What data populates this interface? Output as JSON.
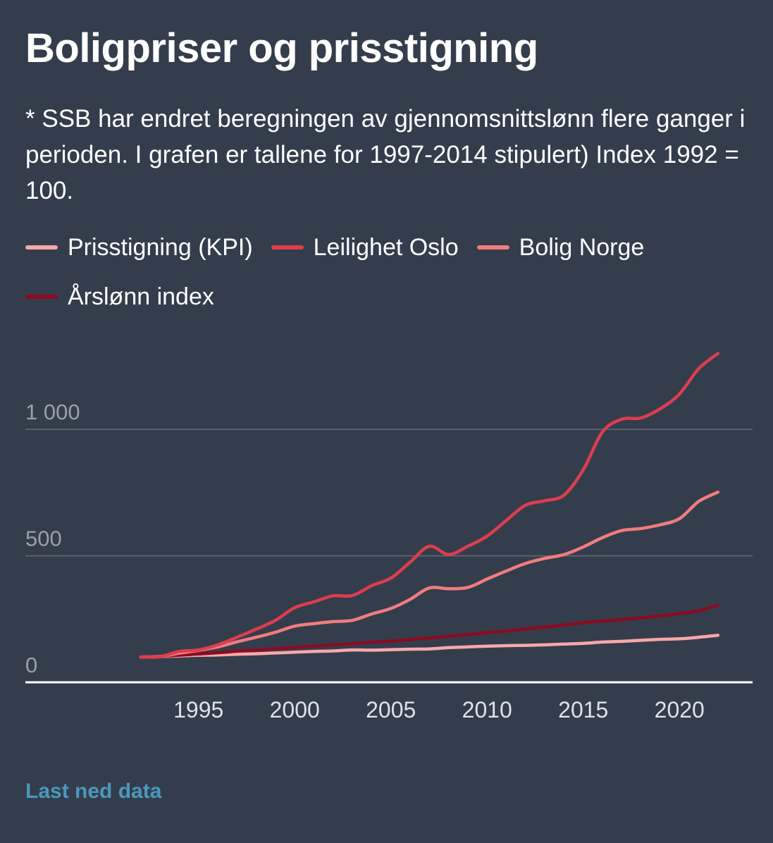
{
  "title": "Boligpriser og prisstigning",
  "subtitle": "* SSB har endret beregningen av gjennomsnittslønn flere ganger i perioden. I grafen er tallene for 1997-2014 stipulert) Index 1992 = 100.",
  "download_label": "Last ned data",
  "chart_data": {
    "type": "line",
    "x": [
      1992,
      1993,
      1994,
      1995,
      1996,
      1997,
      1998,
      1999,
      2000,
      2001,
      2002,
      2003,
      2004,
      2005,
      2006,
      2007,
      2008,
      2009,
      2010,
      2011,
      2012,
      2013,
      2014,
      2015,
      2016,
      2017,
      2018,
      2019,
      2020,
      2021,
      2022
    ],
    "series": [
      {
        "name": "Prisstigning (KPI)",
        "color": "#f8a7aa",
        "values": [
          100,
          102,
          104,
          107,
          108,
          111,
          113,
          116,
          119,
          122,
          124,
          128,
          127,
          129,
          131,
          132,
          137,
          140,
          143,
          145,
          146,
          148,
          151,
          154,
          159,
          162,
          166,
          170,
          172,
          178,
          186
        ]
      },
      {
        "name": "Leilighet Oslo",
        "color": "#de3d4e",
        "values": [
          100,
          101,
          122,
          128,
          148,
          178,
          210,
          245,
          295,
          318,
          342,
          343,
          382,
          412,
          475,
          538,
          505,
          538,
          578,
          640,
          700,
          718,
          740,
          840,
          990,
          1040,
          1045,
          1082,
          1140,
          1240,
          1300
        ]
      },
      {
        "name": "Bolig Norge",
        "color": "#f07c80",
        "values": [
          100,
          102,
          115,
          126,
          140,
          160,
          178,
          198,
          222,
          232,
          240,
          245,
          270,
          292,
          328,
          373,
          370,
          375,
          408,
          440,
          470,
          490,
          505,
          535,
          572,
          600,
          608,
          623,
          647,
          715,
          752
        ]
      },
      {
        "name": "Årslønn index",
        "color": "#8b0a22",
        "values": [
          100,
          103,
          107,
          112,
          117,
          123,
          128,
          133,
          138,
          143,
          148,
          153,
          158,
          163,
          169,
          175,
          182,
          189,
          196,
          203,
          211,
          218,
          226,
          236,
          242,
          248,
          255,
          263,
          272,
          283,
          305
        ]
      }
    ],
    "x_ticks": [
      "1995",
      "2000",
      "2005",
      "2010",
      "2015",
      "2020"
    ],
    "y_ticks": [
      {
        "value": 0,
        "label": "0"
      },
      {
        "value": 500,
        "label": "500"
      },
      {
        "value": 1000,
        "label": "1 000"
      }
    ],
    "xlim": [
      1986,
      2023.8
    ],
    "ylim": [
      0,
      1360
    ],
    "grid": true,
    "legend_position": "top"
  }
}
